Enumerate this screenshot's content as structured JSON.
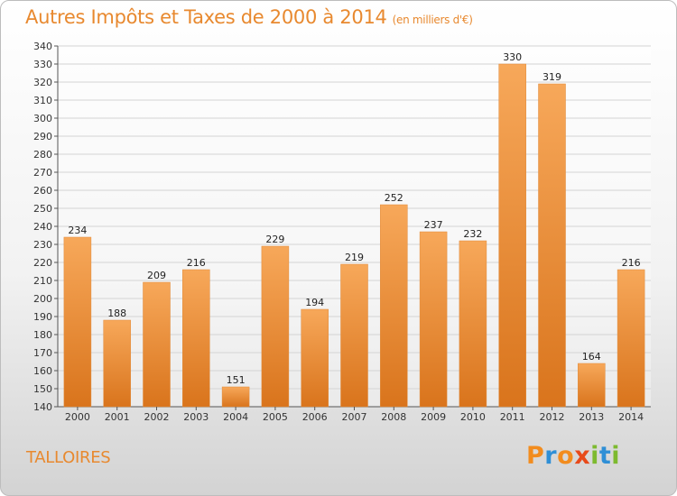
{
  "header": {
    "title": "Autres Impôts et Taxes de 2000 à 2014",
    "unit": "(en milliers d'€)"
  },
  "footer": {
    "commune": "TALLOIRES",
    "logo_text": "Proxiti",
    "logo_colors": [
      "#f28c1e",
      "#2f8fd6",
      "#f28c1e",
      "#e84a1a",
      "#7dba2f",
      "#2f8fd6",
      "#7dba2f"
    ]
  },
  "colors": {
    "accent": "#e8892f",
    "bar_top": "#f7a85a",
    "bar_bottom": "#d9741c",
    "grid": "#d4d4d4"
  },
  "chart_data": {
    "type": "bar",
    "title": "Autres Impôts et Taxes de 2000 à 2014",
    "subtitle": "(en milliers d'€)",
    "categories": [
      "2000",
      "2001",
      "2002",
      "2003",
      "2004",
      "2005",
      "2006",
      "2007",
      "2008",
      "2009",
      "2010",
      "2011",
      "2012",
      "2013",
      "2014"
    ],
    "values": [
      234,
      188,
      209,
      216,
      151,
      229,
      194,
      219,
      252,
      237,
      232,
      330,
      319,
      164,
      216
    ],
    "ylim": [
      140,
      340
    ],
    "ytick_step": 10,
    "grid": true,
    "data_labels": true
  }
}
